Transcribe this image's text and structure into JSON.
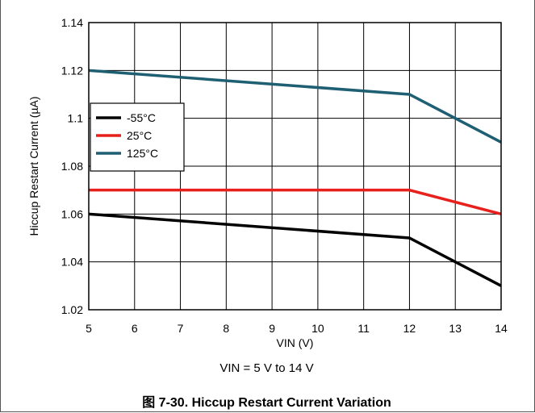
{
  "chart_data": {
    "type": "line",
    "xlabel": "VIN (V)",
    "ylabel": "Hiccup Restart Current (µA)",
    "xlim": [
      5,
      14
    ],
    "ylim": [
      1.02,
      1.14
    ],
    "x_ticks": [
      "5",
      "6",
      "7",
      "8",
      "9",
      "10",
      "11",
      "12",
      "13",
      "14"
    ],
    "y_ticks": [
      "1.02",
      "1.04",
      "1.06",
      "1.08",
      "1.1",
      "1.12",
      "1.14"
    ],
    "grid": true,
    "legend_position": "left",
    "series": [
      {
        "name": "-55°C",
        "color": "#000000",
        "x": [
          5,
          12,
          14
        ],
        "y": [
          1.06,
          1.05,
          1.03
        ]
      },
      {
        "name": "25°C",
        "color": "#e8201c",
        "x": [
          5,
          12,
          14
        ],
        "y": [
          1.07,
          1.07,
          1.06
        ]
      },
      {
        "name": "125°C",
        "color": "#1f5f73",
        "x": [
          5,
          12,
          14
        ],
        "y": [
          1.12,
          1.11,
          1.09
        ]
      }
    ]
  },
  "condition_text": "VIN = 5 V to 14 V",
  "caption": "图 7-30. Hiccup Restart Current Variation"
}
